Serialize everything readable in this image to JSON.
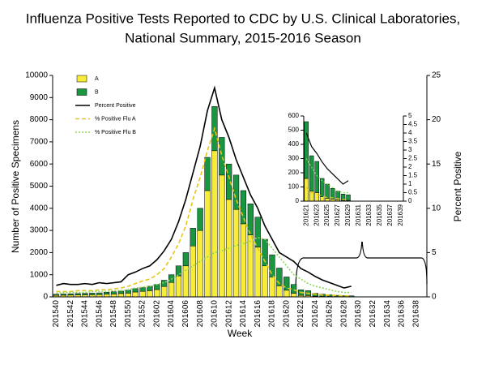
{
  "chart_data": [
    {
      "type": "bar",
      "title": [
        "Influenza Positive Tests Reported to CDC by U.S. Clinical Laboratories,",
        "National Summary, 2015-2016 Season"
      ],
      "x_label": "Week",
      "y_label": "Number of Positive Specimens",
      "y2_label": "Percent Positive",
      "legend": "upper left",
      "stacked": true,
      "categories": [
        "201540",
        null,
        "201542",
        null,
        "201544",
        null,
        "201546",
        null,
        "201548",
        null,
        "201550",
        null,
        "201552",
        null,
        "201602",
        null,
        "201604",
        null,
        "201606",
        null,
        "201608",
        null,
        "201610",
        null,
        "201612",
        null,
        "201614",
        null,
        "201616",
        null,
        "201618",
        null,
        "201620",
        null,
        "201622",
        null,
        "201624",
        null,
        "201626",
        null,
        "201628",
        null,
        "201630",
        null,
        "201632",
        null,
        "201634",
        null,
        "201636",
        null,
        "201638",
        null
      ],
      "ylim": [
        0,
        10000
      ],
      "yticks": [
        0,
        1000,
        2000,
        3000,
        4000,
        5000,
        6000,
        7000,
        8000,
        9000,
        10000
      ],
      "y2lim": [
        0,
        25
      ],
      "y2ticks": [
        0,
        5,
        10,
        15,
        20,
        25
      ],
      "series": [
        {
          "name": "A",
          "type": "bar",
          "color": "#f7ec3a",
          "values": [
            70,
            75,
            80,
            85,
            90,
            95,
            100,
            120,
            130,
            150,
            170,
            220,
            250,
            280,
            330,
            470,
            650,
            950,
            1400,
            2300,
            3000,
            4800,
            6600,
            5500,
            4400,
            3950,
            3300,
            2800,
            2250,
            1400,
            900,
            500,
            300,
            160,
            70,
            60,
            30,
            20,
            15,
            10,
            5,
            5,
            null,
            null,
            null,
            null,
            null,
            null,
            null,
            null,
            null,
            null
          ]
        },
        {
          "name": "B",
          "type": "bar",
          "color": "#1a9641",
          "values": [
            50,
            55,
            60,
            65,
            70,
            75,
            80,
            90,
            100,
            110,
            130,
            150,
            170,
            200,
            230,
            280,
            350,
            450,
            600,
            800,
            1000,
            1500,
            2000,
            1700,
            1600,
            1550,
            1500,
            1400,
            1350,
            1200,
            1000,
            800,
            600,
            400,
            250,
            220,
            130,
            100,
            75,
            60,
            45,
            40,
            null,
            null,
            null,
            null,
            null,
            null,
            null,
            null,
            null,
            null
          ]
        },
        {
          "name": "Percent Positive",
          "type": "line",
          "axis": "y2",
          "line_style": "solid",
          "color": "#000000",
          "values": [
            1.3,
            1.5,
            1.4,
            1.4,
            1.5,
            1.4,
            1.6,
            1.5,
            1.6,
            1.7,
            2.5,
            2.8,
            3.2,
            3.5,
            4.2,
            5.2,
            6.5,
            8.5,
            11,
            14,
            17,
            21,
            23.6,
            20,
            18,
            15.5,
            13.5,
            11.5,
            10,
            8,
            6.5,
            5,
            4.5,
            4,
            3.2,
            2.8,
            2.3,
            1.9,
            1.6,
            1.3,
            1,
            1.2,
            null,
            null,
            null,
            null,
            null,
            null,
            null,
            null,
            null,
            null
          ]
        },
        {
          "name": "% Positive Flu A",
          "type": "line",
          "axis": "y2",
          "line_style": "dashed",
          "color": "#e6c619",
          "values": [
            0.6,
            0.6,
            0.6,
            0.7,
            0.7,
            0.7,
            0.8,
            0.8,
            0.9,
            1,
            1.2,
            1.5,
            1.8,
            2,
            2.5,
            3.2,
            4.5,
            6,
            8,
            11,
            13.5,
            16.5,
            19,
            16,
            13.5,
            11,
            9,
            7,
            5.5,
            4,
            2.5,
            1.5,
            1,
            0.8,
            0.5,
            0.4,
            0.3,
            0.2,
            0.2,
            0.15,
            0.1,
            0.1,
            null,
            null,
            null,
            null,
            null,
            null,
            null,
            null,
            null,
            null
          ]
        },
        {
          "name": "% Positive Flu B",
          "type": "line",
          "axis": "y2",
          "line_style": "dotted",
          "color": "#8fd65a",
          "values": [
            0.4,
            0.5,
            0.5,
            0.5,
            0.5,
            0.6,
            0.6,
            0.6,
            0.7,
            0.7,
            0.8,
            1,
            1.1,
            1.2,
            1.4,
            1.6,
            2,
            2.5,
            3,
            3.5,
            4,
            4.5,
            5,
            5.2,
            5.5,
            5.8,
            6,
            6.3,
            6.7,
            6.5,
            5.5,
            4.5,
            3.5,
            2.5,
            2,
            1.5,
            1.2,
            1,
            0.8,
            0.6,
            0.5,
            0.5,
            null,
            null,
            null,
            null,
            null,
            null,
            null,
            null,
            null,
            null
          ]
        }
      ]
    },
    {
      "type": "bar",
      "stacked": true,
      "categories": [
        "201621",
        null,
        "201623",
        null,
        "201625",
        null,
        "201627",
        null,
        "201629",
        null,
        "201631",
        null,
        "201633",
        null,
        "201635",
        null,
        "201637",
        null,
        "201639"
      ],
      "ylim": [
        0,
        600
      ],
      "yticks": [
        0,
        100,
        200,
        300,
        400,
        500,
        600
      ],
      "y2lim": [
        0,
        5
      ],
      "y2ticks": [
        0,
        0.5,
        1,
        1.5,
        2,
        2.5,
        3,
        3.5,
        4,
        4.5,
        5
      ],
      "series": [
        {
          "name": "A",
          "type": "bar",
          "color": "#f7ec3a",
          "values": [
            160,
            70,
            60,
            30,
            20,
            15,
            10,
            5,
            5,
            null,
            null,
            null,
            null,
            null,
            null,
            null,
            null,
            null,
            null
          ]
        },
        {
          "name": "B",
          "type": "bar",
          "color": "#1a9641",
          "values": [
            400,
            250,
            220,
            130,
            100,
            75,
            60,
            45,
            40,
            null,
            null,
            null,
            null,
            null,
            null,
            null,
            null,
            null,
            null
          ]
        },
        {
          "name": "Percent Positive",
          "type": "line",
          "axis": "y2",
          "line_style": "solid",
          "color": "#000000",
          "values": [
            4,
            3.2,
            2.8,
            2.3,
            1.9,
            1.6,
            1.3,
            1,
            1.2,
            null,
            null,
            null,
            null,
            null,
            null,
            null,
            null,
            null,
            null
          ]
        },
        {
          "name": "% Positive Flu A",
          "type": "line",
          "axis": "y2",
          "line_style": "dashed",
          "color": "#e6c619",
          "values": [
            0.8,
            0.5,
            0.4,
            0.3,
            0.2,
            0.2,
            0.15,
            0.1,
            0.1,
            null,
            null,
            null,
            null,
            null,
            null,
            null,
            null,
            null,
            null
          ]
        },
        {
          "name": "% Positive Flu B",
          "type": "line",
          "axis": "y2",
          "line_style": "dotted",
          "color": "#8fd65a",
          "values": [
            2.5,
            2,
            1.5,
            1.2,
            1,
            0.8,
            0.6,
            0.5,
            0.5,
            null,
            null,
            null,
            null,
            null,
            null,
            null,
            null,
            null,
            null
          ]
        }
      ]
    }
  ]
}
